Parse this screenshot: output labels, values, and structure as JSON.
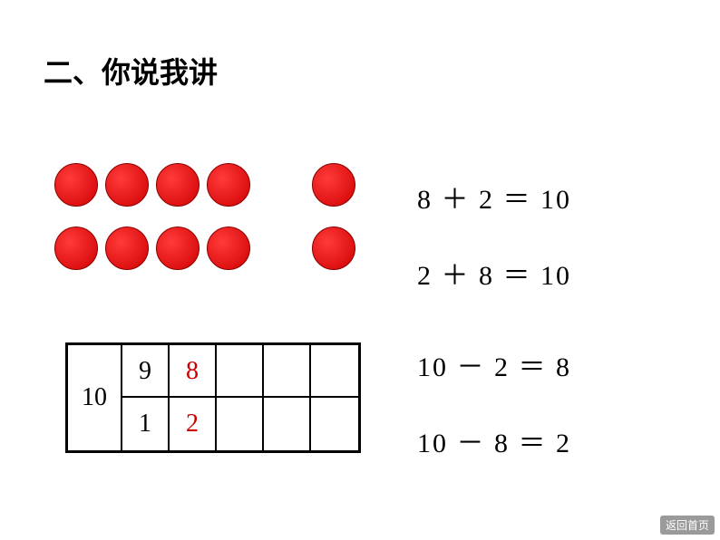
{
  "title": "二、你说我讲",
  "dots": {
    "color": "#e60000",
    "rows": [
      {
        "group1_count": 4,
        "group2_count": 1
      },
      {
        "group1_count": 4,
        "group2_count": 1
      }
    ]
  },
  "equations_upper": [
    "8 ＋ 2 ＝ 10",
    "2 ＋ 8 ＝ 10"
  ],
  "equations_lower": [
    "10 － 2 ＝ 8",
    "10 － 8 ＝ 2"
  ],
  "table": {
    "left_value": "10",
    "columns": 5,
    "top_row": [
      "9",
      "8",
      "",
      "",
      ""
    ],
    "bottom_row": [
      "1",
      "2",
      "",
      "",
      ""
    ],
    "top_colors": [
      "#000000",
      "#cc0000",
      "#000000",
      "#000000",
      "#000000"
    ],
    "bottom_colors": [
      "#000000",
      "#cc0000",
      "#000000",
      "#000000",
      "#000000"
    ]
  },
  "back_button": "返回首页"
}
